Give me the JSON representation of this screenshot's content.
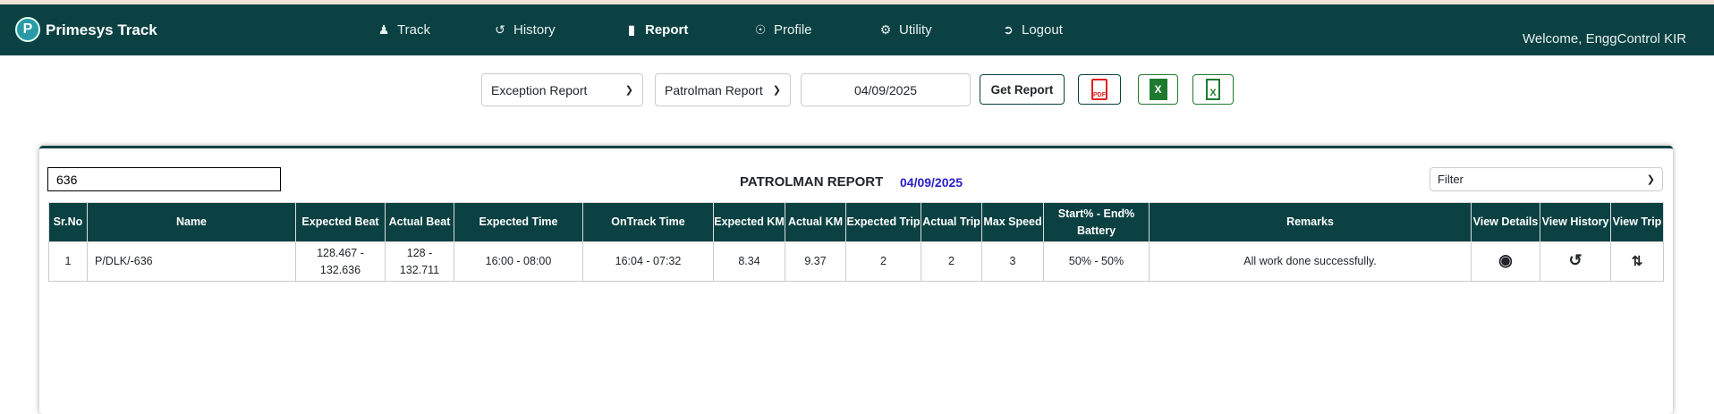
{
  "header": {
    "brand": "Primesys Track",
    "logo_letter": "P",
    "welcome": "Welcome, EnggControl KIR",
    "nav": [
      {
        "label": "Track",
        "icon": "user-pin-icon"
      },
      {
        "label": "History",
        "icon": "history-icon"
      },
      {
        "label": "Report",
        "icon": "file-icon",
        "active": true
      },
      {
        "label": "Profile",
        "icon": "user-circle-icon"
      },
      {
        "label": "Utility",
        "icon": "gear-icon"
      },
      {
        "label": "Logout",
        "icon": "logout-icon"
      }
    ]
  },
  "controls": {
    "report_type": "Exception Report",
    "sub_type": "Patrolman Report",
    "date": "04/09/2025",
    "get_report": "Get Report",
    "pdf_label": "PDF",
    "excel_label": "X"
  },
  "report": {
    "search_value": "636",
    "title": "PATROLMAN REPORT",
    "date": "04/09/2025",
    "filter": "Filter",
    "columns": [
      "Sr.No",
      "Name",
      "Expected Beat",
      "Actual Beat",
      "Expected Time",
      "OnTrack Time",
      "Expected KM",
      "Actual KM",
      "Expected Trip",
      "Actual Trip",
      "Max Speed",
      "Start% - End% Battery",
      "Remarks",
      "View Details",
      "View History",
      "View Trip"
    ],
    "rows": [
      {
        "srno": "1",
        "name": "P/DLK/-636",
        "expected_beat": "128.467 - 132.636",
        "actual_beat": "128 - 132.711",
        "expected_time": "16:00 - 08:00",
        "ontrack_time": "16:04 - 07:32",
        "expected_km": "8.34",
        "actual_km": "9.37",
        "expected_trip": "2",
        "actual_trip": "2",
        "max_speed": "3",
        "battery": "50% - 50%",
        "remarks": "All work done successfully."
      }
    ]
  },
  "colors": {
    "primary": "#0b4143",
    "date": "#2a1fc9",
    "pdf": "#e02020",
    "excel": "#1d7a2e"
  }
}
